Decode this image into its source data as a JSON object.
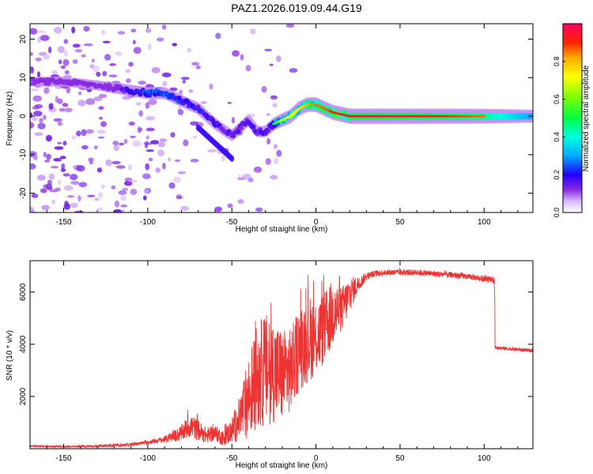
{
  "figure": {
    "title": "PAZ1.2026.019.09.44.G19"
  },
  "chart_data": [
    {
      "type": "heatmap",
      "name": "spectrogram",
      "xlabel": "Height of straight line (km)",
      "ylabel": "Frequency (Hz)",
      "xlim": [
        -170,
        129
      ],
      "ylim": [
        -25,
        24
      ],
      "xticks": [
        -150,
        -100,
        -50,
        0,
        50,
        100
      ],
      "yticks": [
        -20,
        -10,
        0,
        10,
        20
      ],
      "description_ridge": {
        "x": [
          -170,
          -150,
          -130,
          -115,
          -100,
          -90,
          -80,
          -70,
          -60,
          -50,
          -45,
          -40,
          -35,
          -30,
          -25,
          -20,
          -15,
          -10,
          -5,
          0,
          5,
          10,
          20,
          50,
          100,
          129
        ],
        "y": [
          9,
          9,
          8,
          7,
          6,
          6,
          4,
          2,
          -2,
          -5,
          -3,
          -1,
          -4,
          -4,
          -2,
          -1,
          0,
          2,
          3,
          3,
          2,
          1,
          0,
          0,
          0,
          0
        ],
        "amplitude": [
          0.05,
          0.08,
          0.1,
          0.35,
          0.45,
          0.45,
          0.45,
          0.4,
          0.35,
          0.3,
          0.3,
          0.3,
          0.3,
          0.35,
          0.5,
          0.7,
          0.75,
          0.8,
          0.85,
          0.9,
          0.9,
          0.95,
          1.0,
          1.0,
          0.9,
          0.6
        ]
      },
      "secondary_ridge": {
        "x": [
          -70,
          -65,
          -60,
          -55,
          -50
        ],
        "y": [
          -3,
          -5,
          -7,
          -9,
          -11
        ]
      },
      "colorbar": {
        "label": "Normalized spectral amplitude",
        "range": [
          0.0,
          1.0
        ],
        "ticks": [
          "0.0",
          "0.2",
          "0.4",
          "0.6",
          "0.8"
        ]
      }
    },
    {
      "type": "line",
      "name": "snr",
      "xlabel": "Height of straight line (km)",
      "ylabel": "SNR (10 * v/v)",
      "xlim": [
        -170,
        129
      ],
      "ylim": [
        0,
        7200
      ],
      "xticks": [
        -150,
        -100,
        -50,
        0,
        50,
        100
      ],
      "yticks": [
        2000,
        4000,
        6000
      ],
      "color": "#ee3333",
      "series": [
        {
          "name": "SNR",
          "x": [
            -170,
            -150,
            -130,
            -110,
            -100,
            -90,
            -80,
            -75,
            -70,
            -65,
            -60,
            -55,
            -50,
            -45,
            -40,
            -35,
            -30,
            -25,
            -20,
            -15,
            -10,
            -5,
            0,
            5,
            10,
            15,
            20,
            25,
            30,
            35,
            40,
            50,
            60,
            70,
            80,
            90,
            100,
            106,
            107,
            110,
            120,
            129
          ],
          "y": [
            100,
            80,
            100,
            150,
            250,
            350,
            600,
            900,
            700,
            500,
            600,
            400,
            700,
            1200,
            2000,
            2800,
            3000,
            3000,
            2800,
            3000,
            3800,
            4200,
            4300,
            4600,
            5200,
            5300,
            5900,
            6300,
            6600,
            6700,
            6750,
            6750,
            6750,
            6700,
            6650,
            6600,
            6500,
            6450,
            3900,
            3850,
            3800,
            3750
          ],
          "noise": [
            30,
            40,
            50,
            60,
            80,
            120,
            300,
            500,
            400,
            300,
            300,
            300,
            500,
            900,
            1600,
            2000,
            2200,
            2000,
            1800,
            1600,
            1600,
            1700,
            1500,
            1400,
            1300,
            900,
            700,
            300,
            150,
            120,
            120,
            120,
            120,
            120,
            120,
            120,
            120,
            120,
            80,
            70,
            70,
            70
          ]
        }
      ]
    }
  ]
}
